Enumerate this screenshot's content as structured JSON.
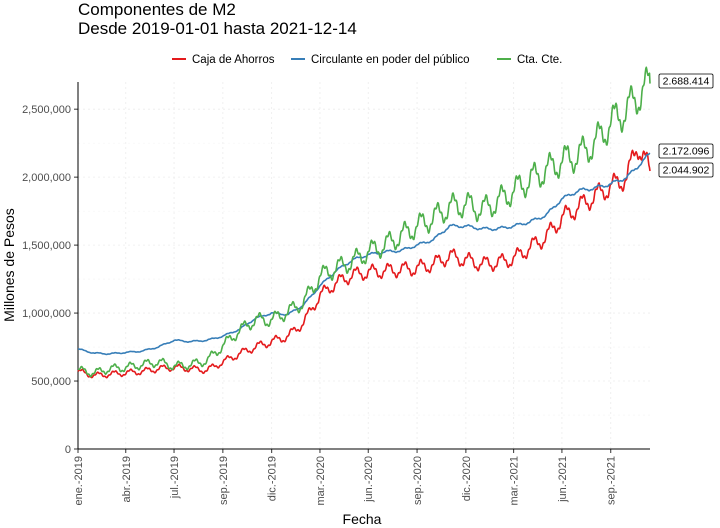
{
  "chart_data": {
    "type": "line",
    "title": "Componentes de M2",
    "subtitle": "Desde 2019-01-01 hasta 2021-12-14",
    "xlabel": "Fecha",
    "ylabel": "Millones de Pesos",
    "x_range": [
      "2019-01-01",
      "2021-12-14"
    ],
    "ylim": [
      0,
      2700000
    ],
    "y_ticks": [
      0,
      500000,
      1000000,
      1500000,
      2000000,
      2500000
    ],
    "y_tick_labels": [
      "0",
      "500,000",
      "1,000,000",
      "1,500,000",
      "2,000,000",
      "2,500,000"
    ],
    "x_ticks": [
      {
        "date": "2019-01-01",
        "label": "ene.-2019"
      },
      {
        "date": "2019-04-01",
        "label": "abr.-2019"
      },
      {
        "date": "2019-07-01",
        "label": "jul.-2019"
      },
      {
        "date": "2019-10-01",
        "label": "sep.-2019"
      },
      {
        "date": "2020-01-01",
        "label": "dic.-2019"
      },
      {
        "date": "2020-04-01",
        "label": "mar.-2020"
      },
      {
        "date": "2020-07-01",
        "label": "jun.-2020"
      },
      {
        "date": "2020-10-01",
        "label": "sep.-2020"
      },
      {
        "date": "2021-01-01",
        "label": "dic.-2020"
      },
      {
        "date": "2021-04-01",
        "label": "mar.-2021"
      },
      {
        "date": "2021-07-01",
        "label": "jun.-2021"
      },
      {
        "date": "2021-10-01",
        "label": "sep.-2021"
      }
    ],
    "grid": true,
    "legend_position": "top",
    "series": [
      {
        "name": "Caja de Ahorros",
        "color": "#e41a1c",
        "end_label": "2.044.902",
        "points": [
          [
            "2019-01-01",
            570000
          ],
          [
            "2019-02-01",
            540000
          ],
          [
            "2019-03-01",
            550000
          ],
          [
            "2019-04-01",
            560000
          ],
          [
            "2019-05-01",
            570000
          ],
          [
            "2019-06-01",
            590000
          ],
          [
            "2019-07-01",
            600000
          ],
          [
            "2019-08-01",
            590000
          ],
          [
            "2019-09-01",
            580000
          ],
          [
            "2019-10-01",
            640000
          ],
          [
            "2019-11-01",
            700000
          ],
          [
            "2019-12-01",
            750000
          ],
          [
            "2020-01-01",
            790000
          ],
          [
            "2020-02-01",
            830000
          ],
          [
            "2020-03-01",
            930000
          ],
          [
            "2020-04-01",
            1130000
          ],
          [
            "2020-05-01",
            1220000
          ],
          [
            "2020-06-01",
            1280000
          ],
          [
            "2020-07-01",
            1300000
          ],
          [
            "2020-08-01",
            1310000
          ],
          [
            "2020-09-01",
            1320000
          ],
          [
            "2020-10-01",
            1330000
          ],
          [
            "2020-11-01",
            1360000
          ],
          [
            "2020-12-01",
            1420000
          ],
          [
            "2021-01-01",
            1390000
          ],
          [
            "2021-02-01",
            1360000
          ],
          [
            "2021-03-01",
            1370000
          ],
          [
            "2021-04-01",
            1400000
          ],
          [
            "2021-05-01",
            1480000
          ],
          [
            "2021-06-01",
            1560000
          ],
          [
            "2021-07-01",
            1700000
          ],
          [
            "2021-08-01",
            1780000
          ],
          [
            "2021-09-01",
            1860000
          ],
          [
            "2021-10-01",
            1930000
          ],
          [
            "2021-11-01",
            2000000
          ],
          [
            "2021-11-20",
            2240000
          ],
          [
            "2021-12-14",
            2044902
          ]
        ]
      },
      {
        "name": "Circulante en poder del público",
        "color": "#377eb8",
        "end_label": "2.172.096",
        "points": [
          [
            "2019-01-01",
            735000
          ],
          [
            "2019-02-01",
            705000
          ],
          [
            "2019-03-01",
            700000
          ],
          [
            "2019-04-01",
            710000
          ],
          [
            "2019-05-01",
            720000
          ],
          [
            "2019-06-01",
            750000
          ],
          [
            "2019-07-01",
            800000
          ],
          [
            "2019-08-01",
            790000
          ],
          [
            "2019-09-01",
            800000
          ],
          [
            "2019-10-01",
            830000
          ],
          [
            "2019-11-01",
            880000
          ],
          [
            "2019-12-01",
            960000
          ],
          [
            "2020-01-01",
            1000000
          ],
          [
            "2020-02-01",
            990000
          ],
          [
            "2020-03-01",
            1060000
          ],
          [
            "2020-04-01",
            1200000
          ],
          [
            "2020-05-01",
            1310000
          ],
          [
            "2020-06-01",
            1390000
          ],
          [
            "2020-07-01",
            1430000
          ],
          [
            "2020-08-01",
            1450000
          ],
          [
            "2020-09-01",
            1460000
          ],
          [
            "2020-10-01",
            1500000
          ],
          [
            "2020-11-01",
            1540000
          ],
          [
            "2020-12-01",
            1640000
          ],
          [
            "2021-01-01",
            1640000
          ],
          [
            "2021-02-01",
            1620000
          ],
          [
            "2021-03-01",
            1620000
          ],
          [
            "2021-04-01",
            1640000
          ],
          [
            "2021-05-01",
            1670000
          ],
          [
            "2021-06-01",
            1720000
          ],
          [
            "2021-07-01",
            1840000
          ],
          [
            "2021-08-01",
            1900000
          ],
          [
            "2021-09-01",
            1920000
          ],
          [
            "2021-10-01",
            1950000
          ],
          [
            "2021-11-01",
            2000000
          ],
          [
            "2021-12-01",
            2120000
          ],
          [
            "2021-12-14",
            2172096
          ]
        ]
      },
      {
        "name": "Cta. Cte.",
        "color": "#4daf4a",
        "end_label": "2.688.414",
        "points": [
          [
            "2019-01-01",
            580000
          ],
          [
            "2019-02-01",
            560000
          ],
          [
            "2019-03-01",
            590000
          ],
          [
            "2019-04-01",
            600000
          ],
          [
            "2019-05-01",
            620000
          ],
          [
            "2019-06-01",
            640000
          ],
          [
            "2019-07-01",
            610000
          ],
          [
            "2019-08-01",
            620000
          ],
          [
            "2019-09-01",
            650000
          ],
          [
            "2019-10-01",
            760000
          ],
          [
            "2019-11-01",
            870000
          ],
          [
            "2019-12-01",
            950000
          ],
          [
            "2020-01-01",
            950000
          ],
          [
            "2020-02-01",
            1010000
          ],
          [
            "2020-03-01",
            1080000
          ],
          [
            "2020-04-01",
            1270000
          ],
          [
            "2020-05-01",
            1330000
          ],
          [
            "2020-06-01",
            1380000
          ],
          [
            "2020-07-01",
            1450000
          ],
          [
            "2020-08-01",
            1500000
          ],
          [
            "2020-09-01",
            1570000
          ],
          [
            "2020-10-01",
            1640000
          ],
          [
            "2020-11-01",
            1700000
          ],
          [
            "2020-12-01",
            1780000
          ],
          [
            "2021-01-01",
            1800000
          ],
          [
            "2021-02-01",
            1760000
          ],
          [
            "2021-03-01",
            1820000
          ],
          [
            "2021-04-01",
            1900000
          ],
          [
            "2021-05-01",
            1980000
          ],
          [
            "2021-06-01",
            2050000
          ],
          [
            "2021-07-01",
            2120000
          ],
          [
            "2021-08-01",
            2160000
          ],
          [
            "2021-09-01",
            2250000
          ],
          [
            "2021-10-01",
            2400000
          ],
          [
            "2021-11-01",
            2500000
          ],
          [
            "2021-12-01",
            2640000
          ],
          [
            "2021-12-14",
            2688414
          ]
        ]
      }
    ]
  }
}
